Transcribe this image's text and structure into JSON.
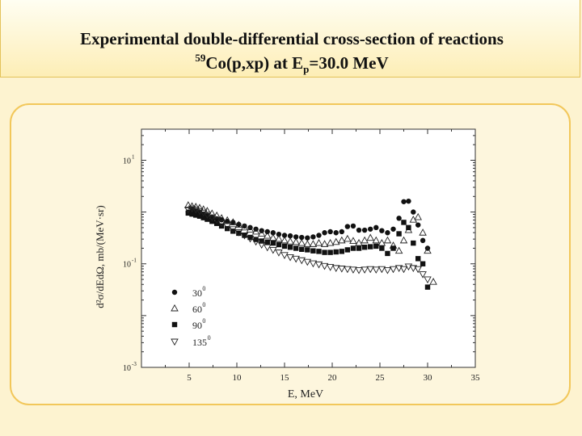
{
  "title": {
    "line1": "Experimental double-differential cross-section of reactions",
    "line2_mass": "59",
    "line2_reaction": "Co(p,xp) at E",
    "line2_sub": "p",
    "line2_energy": "=30.0 MeV"
  },
  "colors": {
    "title_bg": "#fdeeb6",
    "panel_border": "#f2c75a",
    "background": "#fdf3d0"
  },
  "chart_data": {
    "type": "scatter",
    "xlabel": "E, MeV",
    "ylabel": "d²σ/dEdΩ, mb/(MeV·sr)",
    "xlim": [
      0,
      35
    ],
    "ylim_log10": [
      -3,
      1.6
    ],
    "xticks": [
      "5",
      "10",
      "15",
      "20",
      "25",
      "30",
      "35"
    ],
    "ytick_labels": [
      {
        "base": "10",
        "exp": "1",
        "log10": 1
      },
      {
        "base": "10",
        "exp": "-1",
        "log10": -1
      },
      {
        "base": "10",
        "exp": "-3",
        "log10": -3
      }
    ],
    "legend_position": "lower-left",
    "series": [
      {
        "name": "30",
        "angle_unit": "0",
        "marker": "circle",
        "x": [
          4.9,
          5.3,
          5.7,
          6.1,
          6.5,
          6.9,
          7.4,
          7.9,
          8.4,
          9.0,
          9.6,
          10.2,
          10.8,
          11.4,
          12.0,
          12.6,
          13.2,
          13.8,
          14.4,
          15.0,
          15.6,
          16.2,
          16.8,
          17.4,
          18.0,
          18.6,
          19.2,
          19.8,
          20.4,
          21.0,
          21.6,
          22.2,
          22.8,
          23.4,
          24.0,
          24.6,
          25.2,
          25.8,
          26.4,
          27.0,
          27.5,
          28.0,
          28.5,
          29.0,
          29.5,
          30.0
        ],
        "y": [
          0.0,
          0.05,
          0.03,
          0.0,
          -0.04,
          -0.06,
          -0.1,
          -0.13,
          -0.15,
          -0.18,
          -0.2,
          -0.24,
          -0.27,
          -0.3,
          -0.33,
          -0.36,
          -0.38,
          -0.4,
          -0.43,
          -0.45,
          -0.46,
          -0.48,
          -0.49,
          -0.5,
          -0.48,
          -0.45,
          -0.4,
          -0.38,
          -0.4,
          -0.38,
          -0.28,
          -0.27,
          -0.35,
          -0.35,
          -0.33,
          -0.3,
          -0.36,
          -0.4,
          -0.33,
          -0.12,
          0.2,
          0.21,
          0.0,
          -0.25,
          -0.55,
          -0.7
        ]
      },
      {
        "name": "60",
        "angle_unit": "0",
        "marker": "triangle-up",
        "x": [
          4.9,
          5.3,
          5.7,
          6.1,
          6.5,
          6.9,
          7.4,
          7.9,
          8.4,
          9.0,
          9.6,
          10.2,
          10.8,
          11.4,
          12.0,
          12.6,
          13.2,
          13.8,
          14.4,
          15.0,
          15.6,
          16.2,
          16.8,
          17.4,
          18.0,
          18.6,
          19.2,
          19.8,
          20.4,
          21.0,
          21.6,
          22.2,
          22.8,
          23.4,
          24.0,
          24.6,
          25.2,
          25.8,
          26.4,
          27.0,
          27.5,
          28.0,
          28.5,
          29.0,
          29.5,
          30.0,
          30.6
        ],
        "y": [
          0.13,
          0.11,
          0.1,
          0.08,
          0.05,
          0.02,
          -0.03,
          -0.07,
          -0.12,
          -0.16,
          -0.2,
          -0.25,
          -0.3,
          -0.34,
          -0.38,
          -0.42,
          -0.46,
          -0.5,
          -0.52,
          -0.55,
          -0.57,
          -0.58,
          -0.6,
          -0.62,
          -0.62,
          -0.6,
          -0.62,
          -0.6,
          -0.58,
          -0.55,
          -0.52,
          -0.56,
          -0.6,
          -0.55,
          -0.5,
          -0.55,
          -0.6,
          -0.55,
          -0.65,
          -0.75,
          -0.55,
          -0.35,
          -0.15,
          -0.1,
          -0.4,
          -0.75,
          -1.35
        ]
      },
      {
        "name": "90",
        "angle_unit": "0",
        "marker": "square",
        "x": [
          4.9,
          5.3,
          5.7,
          6.1,
          6.5,
          6.9,
          7.4,
          7.9,
          8.4,
          9.0,
          9.6,
          10.2,
          10.8,
          11.4,
          12.0,
          12.6,
          13.2,
          13.8,
          14.4,
          15.0,
          15.6,
          16.2,
          16.8,
          17.4,
          18.0,
          18.6,
          19.2,
          19.8,
          20.4,
          21.0,
          21.6,
          22.2,
          22.8,
          23.4,
          24.0,
          24.6,
          25.2,
          25.8,
          26.4,
          27.0,
          27.5,
          28.0,
          28.5,
          29.0,
          29.5,
          30.0
        ],
        "y": [
          -0.02,
          -0.04,
          -0.06,
          -0.08,
          -0.11,
          -0.14,
          -0.18,
          -0.22,
          -0.27,
          -0.32,
          -0.37,
          -0.41,
          -0.45,
          -0.49,
          -0.53,
          -0.56,
          -0.58,
          -0.6,
          -0.63,
          -0.66,
          -0.68,
          -0.7,
          -0.72,
          -0.73,
          -0.75,
          -0.76,
          -0.78,
          -0.78,
          -0.77,
          -0.76,
          -0.73,
          -0.7,
          -0.7,
          -0.68,
          -0.67,
          -0.66,
          -0.7,
          -0.8,
          -0.7,
          -0.42,
          -0.2,
          -0.3,
          -0.6,
          -0.9,
          -1.0,
          -1.45
        ]
      },
      {
        "name": "135",
        "angle_unit": "0",
        "marker": "triangle-down",
        "x": [
          4.9,
          5.3,
          5.7,
          6.1,
          6.5,
          6.9,
          7.4,
          7.9,
          8.4,
          9.0,
          9.6,
          10.2,
          10.8,
          11.4,
          12.0,
          12.6,
          13.2,
          13.8,
          14.4,
          15.0,
          15.6,
          16.2,
          16.8,
          17.4,
          18.0,
          18.6,
          19.2,
          19.8,
          20.4,
          21.0,
          21.6,
          22.2,
          22.8,
          23.4,
          24.0,
          24.6,
          25.2,
          25.8,
          26.4,
          27.0,
          27.5,
          28.0,
          28.5,
          29.0,
          29.5,
          30.0
        ],
        "y": [
          0.05,
          0.07,
          0.05,
          0.02,
          -0.01,
          -0.05,
          -0.1,
          -0.15,
          -0.21,
          -0.27,
          -0.33,
          -0.39,
          -0.45,
          -0.51,
          -0.57,
          -0.63,
          -0.68,
          -0.73,
          -0.78,
          -0.83,
          -0.87,
          -0.9,
          -0.93,
          -0.96,
          -0.99,
          -1.01,
          -1.04,
          -1.06,
          -1.08,
          -1.09,
          -1.1,
          -1.11,
          -1.12,
          -1.11,
          -1.1,
          -1.11,
          -1.1,
          -1.12,
          -1.1,
          -1.08,
          -1.1,
          -1.05,
          -1.08,
          -1.1,
          -1.2,
          -1.3
        ]
      }
    ]
  }
}
